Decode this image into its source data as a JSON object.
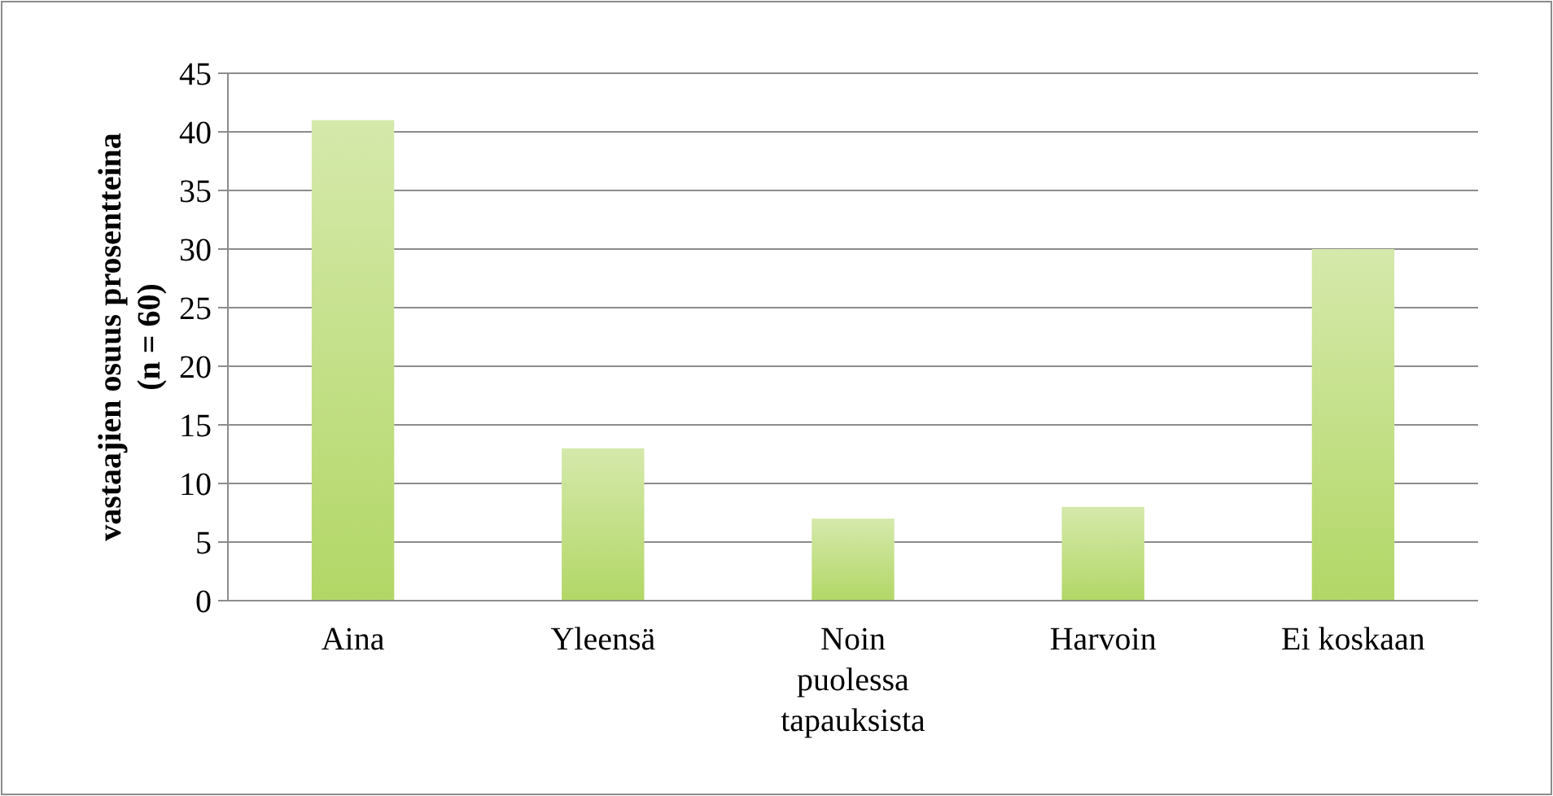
{
  "chart_data": {
    "type": "bar",
    "ylabel": "vastaajien osuus prosentteina (n = 60)",
    "categories": [
      "Aina",
      "Yleensä",
      "Noin puolessa tapauksista",
      "Harvoin",
      "Ei koskaan"
    ],
    "values": [
      41,
      13,
      7,
      8,
      30
    ],
    "color": "#b2d766",
    "ylim": [
      0,
      45
    ],
    "yticks": [
      0,
      5,
      10,
      15,
      20,
      25,
      30,
      35,
      40,
      45
    ],
    "grid": "y"
  }
}
